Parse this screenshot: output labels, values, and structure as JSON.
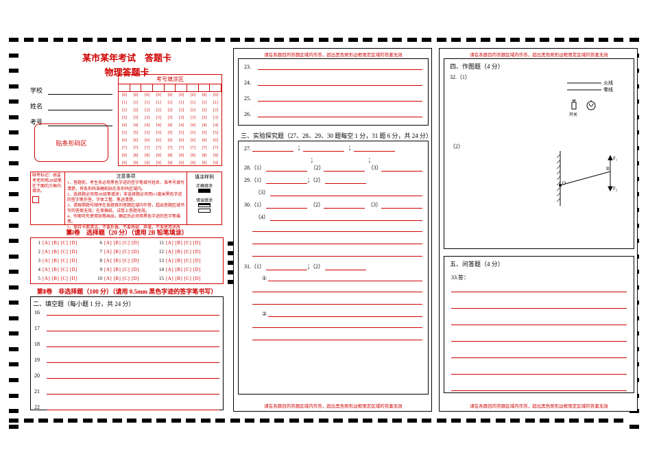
{
  "colors": {
    "red": "#d00000",
    "black": "#000000",
    "bg": "#ffffff"
  },
  "header": {
    "main": "某市某年考试　答题卡",
    "sub": "物理答题卡"
  },
  "idzone": {
    "title": "考号填涂区",
    "digits": [
      "0",
      "1",
      "2",
      "3",
      "4",
      "5",
      "6",
      "7",
      "8",
      "9"
    ],
    "cols": 9
  },
  "info": {
    "school": "学校",
    "name": "姓名",
    "id": "考号"
  },
  "barcode": "贴条形码区",
  "notice": {
    "left": "缺考标记：由监考老师用2B铅笔在下面的方框内填涂。",
    "title": "注意事项",
    "items": [
      "1．答题前，考生务必用黑色字迹的签字笔填写姓名、准考号填写清楚，将条形码准确粘贴在条形码区域内。",
      "2．选择题必须用2B铅笔填涂；非选择题必须用0.5毫米黑色字迹的签字笔作答，字体工整、笔迹清楚。",
      "3．请按照题号顺序在各题目的答题区域内作答，超出答题区域书写的答案无效；在草稿纸、试卷上答题无效。",
      "4．作图可先使用铅笔画出，确定后必须用黑色字迹的签字笔描黑。",
      "5．保持卡面清洁，不要折叠、不要弄破、弄皱，不准使用涂改液。"
    ],
    "right_title": "填涂样例",
    "right_ok": "正确填涂",
    "right_bad": "错误填涂"
  },
  "section1": {
    "title": "第Ⅰ卷　选择题（20 分）（请用 2B 铅笔填涂）",
    "opts": "[A] [B] [C] [D]",
    "nums": [
      "1",
      "2",
      "3",
      "4",
      "5",
      "6",
      "7",
      "8",
      "9",
      "10",
      "11",
      "12",
      "13",
      "14",
      "15"
    ]
  },
  "section2": {
    "title": "第Ⅱ卷　非选择题（100 分）（请用 0.5mm 黑色字迹的签字笔书写）",
    "fill_title": "二、填空题（每小题 1 分，共 24 分）",
    "nums": [
      "16",
      "17",
      "18",
      "19",
      "20",
      "21",
      "22"
    ]
  },
  "page2": {
    "top_nums": [
      "23.",
      "24.",
      "25.",
      "26."
    ],
    "sec3_title": "三、实验探究题（27、28、29、30 题每空 1 分，31 题 6 分，共 24 分）",
    "q27": "27.",
    "q28": {
      "n": "28.",
      "a": "（1）",
      "b": "（2）",
      "c": "（3）"
    },
    "q29": {
      "n": "29.",
      "a": "（1）",
      "b": "；（2）",
      "c": "（3）"
    },
    "q30": {
      "n": "30.",
      "a": "（1）",
      "b": "（2）",
      "c": "（3）",
      "d": "（4）"
    },
    "q31": {
      "n": "31.",
      "a": "（1）",
      "b": "；（2）",
      "c": "①",
      "d": "②"
    }
  },
  "page3": {
    "sec4_title": "四、作图题（4 分）",
    "q32": "32.（1）",
    "q32b": "（2）",
    "diag1": {
      "line1": "火线",
      "line2": "零线",
      "sw": "开关"
    },
    "diag2": {
      "f1": "F₁",
      "f2": "F₂",
      "o": "O",
      "b": "B"
    },
    "sec5_title": "五、问答题（4 分）",
    "q33": "33.答："
  },
  "warn": "请在各题目的答题区域内作答，超出黑色矩形边框限定区域的答案无效"
}
